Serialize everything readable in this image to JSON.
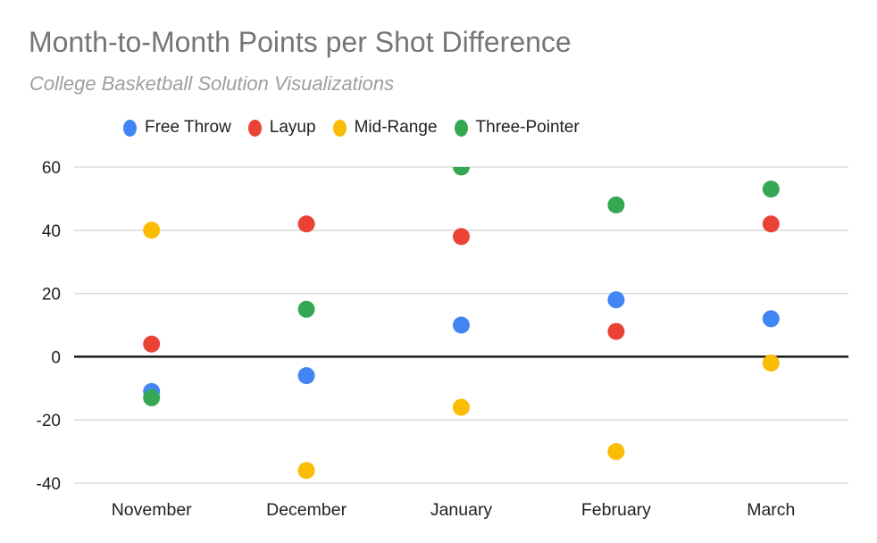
{
  "header": {
    "title": "Month-to-Month Points per Shot Difference",
    "subtitle": "College Basketball Solution Visualizations"
  },
  "legend": {
    "items": [
      {
        "label": "Free Throw",
        "color": "#4285f4"
      },
      {
        "label": "Layup",
        "color": "#ea4335"
      },
      {
        "label": "Mid-Range",
        "color": "#fbbc04"
      },
      {
        "label": "Three-Pointer",
        "color": "#34a853"
      }
    ]
  },
  "chart_data": {
    "type": "scatter",
    "title": "Month-to-Month Points per Shot Difference",
    "subtitle": "College Basketball Solution Visualizations",
    "categories": [
      "November",
      "December",
      "January",
      "February",
      "March"
    ],
    "series": [
      {
        "name": "Free Throw",
        "color": "#4285f4",
        "values": [
          -11,
          -6,
          10,
          18,
          12
        ]
      },
      {
        "name": "Layup",
        "color": "#ea4335",
        "values": [
          4,
          42,
          38,
          8,
          42
        ]
      },
      {
        "name": "Mid-Range",
        "color": "#fbbc04",
        "values": [
          40,
          -36,
          -16,
          -30,
          -2
        ]
      },
      {
        "name": "Three-Pointer",
        "color": "#34a853",
        "values": [
          -13,
          15,
          60,
          48,
          53
        ]
      }
    ],
    "xlabel": "",
    "ylabel": "",
    "ylim": [
      -40,
      60
    ],
    "yticks": [
      60,
      40,
      20,
      0,
      -20,
      -40
    ],
    "grid": true,
    "legend_position": "top",
    "colors": {
      "gridline": "#d6d6d6",
      "zero_line": "#1a1a1a",
      "tick_label": "#212121",
      "title": "#757575",
      "subtitle": "#9e9e9e"
    }
  }
}
